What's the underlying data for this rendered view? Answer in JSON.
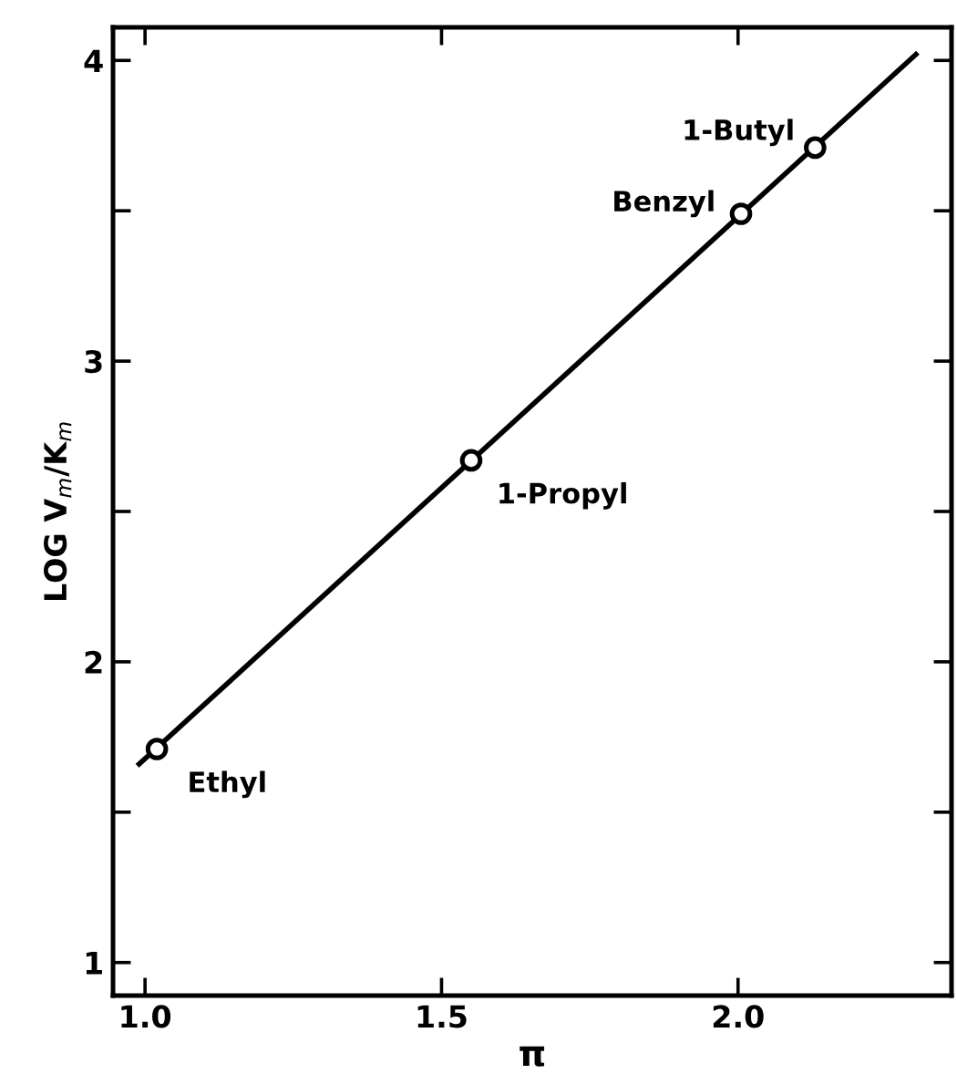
{
  "chart_data": {
    "type": "scatter",
    "xlabel": "π",
    "ylabel": "LOG V$_{m}$/K$_{m}$",
    "xlim": [
      0.946,
      2.36
    ],
    "ylim": [
      0.89,
      4.11
    ],
    "xticks": [
      {
        "value": 1.0,
        "label": "1.0"
      },
      1.5,
      {
        "value": 2.0,
        "label": "2.0"
      }
    ],
    "yticks": [
      1,
      {
        "value": 1.5,
        "label": null
      },
      2,
      {
        "value": 2.5,
        "label": null
      },
      3,
      {
        "value": 3.5,
        "label": null
      },
      4
    ],
    "grid": false,
    "legend": false,
    "series": [
      {
        "type": "line",
        "color": "#000000",
        "x": [
          0.99,
          2.3
        ],
        "values": [
          1.66,
          4.02
        ],
        "marker": "none",
        "line_style": "solid"
      },
      {
        "color": "#000000",
        "x": [
          1.02,
          1.55,
          2.005,
          2.13
        ],
        "values": [
          1.71,
          2.67,
          3.49,
          3.71
        ],
        "marker": "circle"
      }
    ],
    "annotations": [
      {
        "text": "Ethyl",
        "x": 1.02,
        "y": 1.71
      },
      {
        "text": "1-Propyl",
        "x": 1.55,
        "y": 2.67
      },
      {
        "text": "Benzyl",
        "x": 2.005,
        "y": 3.49
      },
      {
        "text": "1-Butyl",
        "x": 2.13,
        "y": 3.71
      }
    ]
  }
}
